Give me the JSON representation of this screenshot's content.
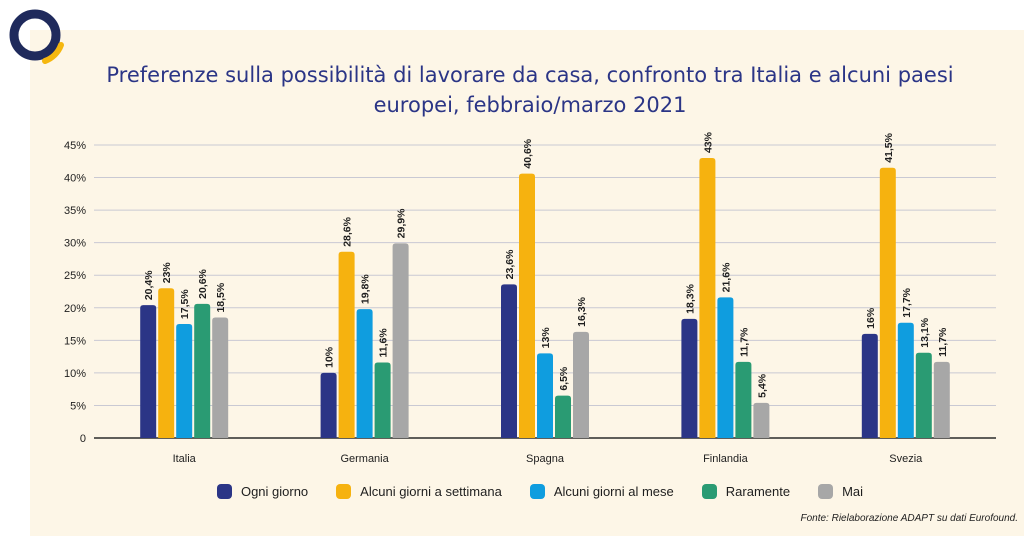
{
  "title_lines": [
    "Preferenze sulla possibilità di lavorare da casa, confronto tra Italia e alcuni paesi",
    "europei, febbraio/marzo 2021"
  ],
  "source": "Fonte: Rielaborazione ADAPT su dati Eurofound.",
  "logo": {
    "icon": "circle-ring-logo-icon",
    "ring_color": "#1f2a5c",
    "arc_color": "#f5b70f"
  },
  "chart_data": {
    "type": "bar",
    "title": "Preferenze sulla possibilità di lavorare da casa, confronto tra Italia e alcuni paesi europei, febbraio/marzo 2021",
    "categories": [
      "Italia",
      "Germania",
      "Spagna",
      "Finlandia",
      "Svezia"
    ],
    "ylim": [
      0,
      45
    ],
    "yticks": [
      0,
      5,
      10,
      15,
      20,
      25,
      30,
      35,
      40,
      45
    ],
    "ytick_labels": [
      "0",
      "5%",
      "10%",
      "15%",
      "20%",
      "25%",
      "30%",
      "35%",
      "40%",
      "45%"
    ],
    "grid": true,
    "legend_position": "bottom",
    "series": [
      {
        "name": "Ogni giorno",
        "color": "#2b3586",
        "values": [
          20.4,
          10,
          23.6,
          18.3,
          16
        ],
        "labels": [
          "20,4%",
          "10%",
          "23,6%",
          "18,3%",
          "16%"
        ]
      },
      {
        "name": "Alcuni giorni a settimana",
        "color": "#f6b20f",
        "values": [
          23,
          28.6,
          40.6,
          43,
          41.5
        ],
        "labels": [
          "23%",
          "28,6%",
          "40,6%",
          "43%",
          "41,5%"
        ]
      },
      {
        "name": "Alcuni giorni al mese",
        "color": "#0f9ddf",
        "values": [
          17.5,
          19.8,
          13,
          21.6,
          17.7
        ],
        "labels": [
          "17,5%",
          "19,8%",
          "13%",
          "21,6%",
          "17,7%"
        ]
      },
      {
        "name": "Raramente",
        "color": "#2a9b73",
        "values": [
          20.6,
          11.6,
          6.5,
          11.7,
          13.1
        ],
        "labels": [
          "20,6%",
          "11,6%",
          "6,5%",
          "11,7%",
          "13,1%"
        ]
      },
      {
        "name": "Mai",
        "color": "#a7a7a7",
        "values": [
          18.5,
          29.9,
          16.3,
          5.4,
          11.7
        ],
        "labels": [
          "18,5%",
          "29,9%",
          "16,3%",
          "5,4%",
          "11,7%"
        ]
      }
    ]
  }
}
